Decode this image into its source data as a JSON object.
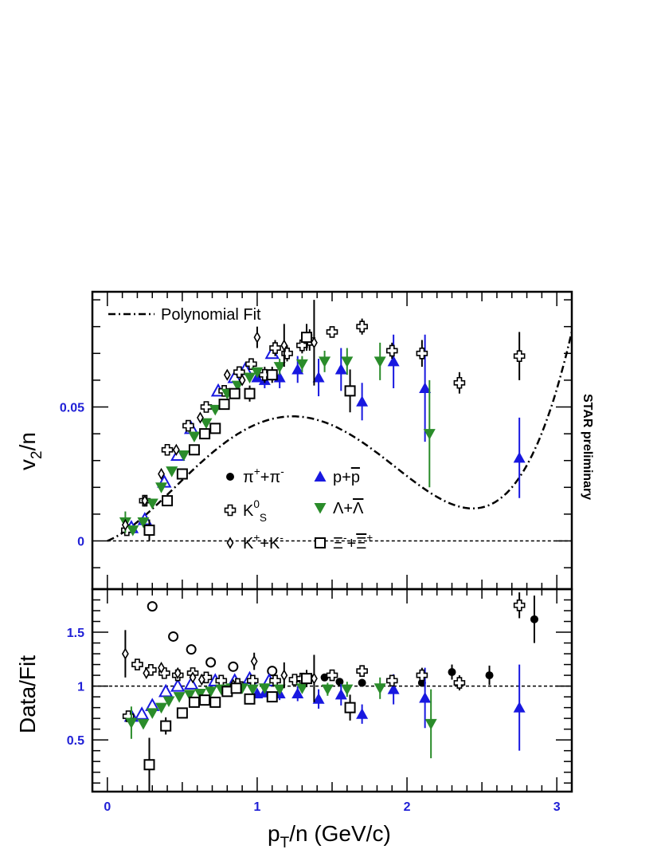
{
  "chart_data": [
    {
      "type": "scatter",
      "panel": "upper",
      "ylabel_main": "v",
      "ylabel_sub": "2",
      "ylabel_tail": "/n",
      "side_label": "STAR preliminary",
      "xlim": [
        -0.1,
        3.1
      ],
      "ylim": [
        -0.018,
        0.093
      ],
      "yticks": [
        {
          "v": 0,
          "label": "0"
        },
        {
          "v": 0.05,
          "label": "0.05"
        }
      ],
      "fit_label": "Polynomial Fit",
      "fit": {
        "a1": 0.0225,
        "a2": 0.078,
        "a3": -0.072,
        "a4": 0.0152
      },
      "series": [
        {
          "name": "pi",
          "legend": [
            "π",
            "+",
            "+π",
            "-"
          ],
          "marker": "circle-filled",
          "color": "#000000",
          "points": []
        },
        {
          "name": "p",
          "legend": [
            "p+",
            "p"
          ],
          "marker": "triangle-up-filled",
          "color": "#1818e0",
          "points": [
            [
              1.0,
              0.061,
              0.002
            ],
            [
              1.05,
              0.06,
              0.003
            ],
            [
              1.15,
              0.061,
              0.004
            ],
            [
              1.27,
              0.064,
              0.005
            ],
            [
              1.41,
              0.061,
              0.007
            ],
            [
              1.56,
              0.064,
              0.008
            ],
            [
              1.7,
              0.052,
              0.007
            ],
            [
              1.91,
              0.067,
              0.01
            ],
            [
              2.12,
              0.057,
              0.02
            ],
            [
              2.75,
              0.031,
              0.015
            ]
          ]
        },
        {
          "name": "p-open",
          "marker": "triangle-up-open",
          "color": "#1818e0",
          "points": [
            [
              0.16,
              0.005,
              0.001
            ],
            [
              0.25,
              0.008,
              0.001
            ],
            [
              0.38,
              0.022,
              0.001
            ],
            [
              0.47,
              0.032,
              0.001
            ],
            [
              0.56,
              0.042,
              0.001
            ],
            [
              0.74,
              0.056,
              0.001
            ],
            [
              0.85,
              0.061,
              0.002
            ],
            [
              0.92,
              0.064,
              0.002
            ],
            [
              1.1,
              0.07,
              0.002
            ]
          ]
        },
        {
          "name": "k0s",
          "legend": [
            "K",
            "0",
            "S"
          ],
          "marker": "cross-open",
          "color": "#000000",
          "points": [
            [
              0.13,
              0.004,
              0.002
            ],
            [
              0.25,
              0.015,
              0.001
            ],
            [
              0.4,
              0.034,
              0.001
            ],
            [
              0.54,
              0.043,
              0.001
            ],
            [
              0.66,
              0.05,
              0.001
            ],
            [
              0.78,
              0.056,
              0.001
            ],
            [
              0.88,
              0.063,
              0.002
            ],
            [
              0.96,
              0.066,
              0.002
            ],
            [
              1.05,
              0.062,
              0.003
            ],
            [
              1.12,
              0.072,
              0.003
            ],
            [
              1.2,
              0.07,
              0.003
            ],
            [
              1.3,
              0.073,
              0.003
            ],
            [
              1.35,
              0.075,
              0.004
            ],
            [
              1.5,
              0.078,
              0.002
            ],
            [
              1.7,
              0.08,
              0.003
            ],
            [
              1.9,
              0.071,
              0.003
            ],
            [
              2.1,
              0.07,
              0.005
            ],
            [
              2.35,
              0.059,
              0.004
            ],
            [
              2.75,
              0.069,
              0.009
            ]
          ]
        },
        {
          "name": "lambda",
          "legend": [
            "Λ+",
            "Λ"
          ],
          "marker": "triangle-down-filled",
          "color": "#2a8c2a",
          "points": [
            [
              0.12,
              0.007,
              0.004
            ],
            [
              0.17,
              0.004,
              0.002
            ],
            [
              0.24,
              0.007,
              0.002
            ],
            [
              0.3,
              0.014,
              0.001
            ],
            [
              0.36,
              0.02,
              0.001
            ],
            [
              0.43,
              0.026,
              0.001
            ],
            [
              0.51,
              0.032,
              0.001
            ],
            [
              0.58,
              0.039,
              0.001
            ],
            [
              0.66,
              0.044,
              0.001
            ],
            [
              0.72,
              0.049,
              0.001
            ],
            [
              0.8,
              0.055,
              0.001
            ],
            [
              0.87,
              0.058,
              0.002
            ],
            [
              0.95,
              0.061,
              0.002
            ],
            [
              1.0,
              0.063,
              0.002
            ],
            [
              1.15,
              0.065,
              0.003
            ],
            [
              1.3,
              0.066,
              0.003
            ],
            [
              1.45,
              0.067,
              0.004
            ],
            [
              1.6,
              0.067,
              0.005
            ],
            [
              1.82,
              0.067,
              0.007
            ],
            [
              2.15,
              0.04,
              0.02
            ]
          ]
        },
        {
          "name": "kpm",
          "legend": [
            "K",
            "+",
            "+K",
            "-"
          ],
          "marker": "diamond-open",
          "color": "#000000",
          "points": [
            [
              0.12,
              0.006,
              0.002
            ],
            [
              0.25,
              0.015,
              0.001
            ],
            [
              0.36,
              0.025,
              0.001
            ],
            [
              0.46,
              0.034,
              0.001
            ],
            [
              0.62,
              0.046,
              0.001
            ],
            [
              0.8,
              0.062,
              0.002
            ],
            [
              0.9,
              0.06,
              0.002
            ],
            [
              1.0,
              0.076,
              0.004
            ],
            [
              1.18,
              0.073,
              0.008
            ],
            [
              1.38,
              0.074,
              0.016
            ]
          ]
        },
        {
          "name": "xi",
          "legend": [
            "Ξ",
            "-",
            "+",
            "Ξ",
            "+"
          ],
          "marker": "square-open",
          "color": "#000000",
          "points": [
            [
              0.28,
              0.004,
              0.004
            ],
            [
              0.4,
              0.015,
              0.002
            ],
            [
              0.5,
              0.025,
              0.002
            ],
            [
              0.58,
              0.034,
              0.002
            ],
            [
              0.65,
              0.04,
              0.002
            ],
            [
              0.72,
              0.042,
              0.002
            ],
            [
              0.78,
              0.051,
              0.002
            ],
            [
              0.85,
              0.055,
              0.002
            ],
            [
              0.95,
              0.055,
              0.003
            ],
            [
              1.1,
              0.062,
              0.003
            ],
            [
              1.33,
              0.076,
              0.005
            ],
            [
              1.62,
              0.056,
              0.008
            ]
          ]
        }
      ]
    },
    {
      "type": "scatter",
      "panel": "lower",
      "ylabel": "Data/Fit",
      "xlabel_main": "p",
      "xlabel_sub": "T",
      "xlabel_tail": "/n (GeV/c)",
      "xlim": [
        -0.1,
        3.1
      ],
      "ylim": [
        0.02,
        1.9
      ],
      "reference_line": 1,
      "xticks": [
        {
          "v": 0,
          "label": "0"
        },
        {
          "v": 1,
          "label": "1"
        },
        {
          "v": 2,
          "label": "2"
        },
        {
          "v": 3,
          "label": "3"
        }
      ],
      "yticks": [
        {
          "v": 0.5,
          "label": "0.5"
        },
        {
          "v": 1,
          "label": "1"
        },
        {
          "v": 1.5,
          "label": "1.5"
        }
      ],
      "series": [
        {
          "name": "pi",
          "marker": "circle-filled",
          "color": "#000000",
          "points": [
            [
              1.35,
              1.08,
              0.04
            ],
            [
              1.45,
              1.08,
              0.03
            ],
            [
              1.55,
              1.04,
              0.03
            ],
            [
              1.7,
              1.03,
              0.03
            ],
            [
              2.1,
              1.03,
              0.04
            ],
            [
              2.3,
              1.13,
              0.07
            ],
            [
              2.55,
              1.1,
              0.09
            ],
            [
              2.85,
              1.62,
              0.22
            ]
          ]
        },
        {
          "name": "pi-open",
          "marker": "circle-open",
          "color": "#000000",
          "points": [
            [
              0.3,
              1.74,
              0.02
            ],
            [
              0.44,
              1.46,
              0.02
            ],
            [
              0.56,
              1.34,
              0.02
            ],
            [
              0.69,
              1.22,
              0.02
            ],
            [
              0.84,
              1.18,
              0.02
            ],
            [
              1.1,
              1.14,
              0.02
            ]
          ]
        },
        {
          "name": "p",
          "marker": "triangle-up-filled",
          "color": "#1818e0",
          "points": [
            [
              1.0,
              0.93,
              0.03
            ],
            [
              1.05,
              0.94,
              0.04
            ],
            [
              1.15,
              0.93,
              0.06
            ],
            [
              1.27,
              0.93,
              0.07
            ],
            [
              1.41,
              0.88,
              0.09
            ],
            [
              1.56,
              0.92,
              0.1
            ],
            [
              1.7,
              0.74,
              0.09
            ],
            [
              1.91,
              0.97,
              0.14
            ],
            [
              2.12,
              0.89,
              0.28
            ],
            [
              2.75,
              0.8,
              0.4
            ]
          ]
        },
        {
          "name": "p-open",
          "marker": "triangle-up-open",
          "color": "#1818e0",
          "points": [
            [
              0.16,
              0.72,
              0.03
            ],
            [
              0.23,
              0.74,
              0.03
            ],
            [
              0.3,
              0.82,
              0.02
            ],
            [
              0.39,
              0.95,
              0.02
            ],
            [
              0.47,
              1.0,
              0.02
            ],
            [
              0.56,
              1.02,
              0.02
            ],
            [
              0.72,
              1.05,
              0.02
            ],
            [
              0.85,
              1.05,
              0.02
            ],
            [
              0.95,
              1.07,
              0.02
            ],
            [
              1.08,
              1.05,
              0.03
            ]
          ]
        },
        {
          "name": "k0s",
          "marker": "cross-open",
          "color": "#000000",
          "points": [
            [
              0.14,
              0.72,
              0.05
            ],
            [
              0.2,
              1.2,
              0.04
            ],
            [
              0.29,
              1.15,
              0.03
            ],
            [
              0.38,
              1.12,
              0.03
            ],
            [
              0.47,
              1.1,
              0.03
            ],
            [
              0.57,
              1.12,
              0.02
            ],
            [
              0.66,
              1.08,
              0.02
            ],
            [
              0.76,
              1.05,
              0.02
            ],
            [
              0.87,
              1.02,
              0.02
            ],
            [
              0.97,
              1.05,
              0.03
            ],
            [
              1.12,
              1.05,
              0.03
            ],
            [
              1.25,
              1.06,
              0.04
            ],
            [
              1.3,
              1.07,
              0.04
            ],
            [
              1.5,
              1.1,
              0.04
            ],
            [
              1.7,
              1.14,
              0.04
            ],
            [
              1.9,
              1.05,
              0.05
            ],
            [
              2.1,
              1.1,
              0.07
            ],
            [
              2.35,
              1.03,
              0.07
            ],
            [
              2.75,
              1.75,
              0.12
            ]
          ]
        },
        {
          "name": "lambda",
          "marker": "triangle-down-filled",
          "color": "#2a8c2a",
          "points": [
            [
              0.16,
              0.66,
              0.15
            ],
            [
              0.24,
              0.65,
              0.05
            ],
            [
              0.3,
              0.75,
              0.03
            ],
            [
              0.36,
              0.8,
              0.03
            ],
            [
              0.41,
              0.86,
              0.02
            ],
            [
              0.48,
              0.9,
              0.02
            ],
            [
              0.55,
              0.92,
              0.02
            ],
            [
              0.62,
              0.93,
              0.02
            ],
            [
              0.69,
              0.95,
              0.02
            ],
            [
              0.76,
              0.97,
              0.02
            ],
            [
              0.83,
              0.98,
              0.02
            ],
            [
              0.9,
              0.98,
              0.02
            ],
            [
              0.97,
              0.97,
              0.03
            ],
            [
              1.05,
              0.98,
              0.03
            ],
            [
              1.15,
              0.97,
              0.04
            ],
            [
              1.3,
              0.98,
              0.05
            ],
            [
              1.47,
              0.97,
              0.06
            ],
            [
              1.6,
              0.97,
              0.07
            ],
            [
              1.82,
              0.98,
              0.1
            ],
            [
              2.16,
              0.65,
              0.32
            ]
          ]
        },
        {
          "name": "kpm",
          "marker": "diamond-open",
          "color": "#000000",
          "points": [
            [
              0.12,
              1.3,
              0.22
            ],
            [
              0.26,
              1.12,
              0.04
            ],
            [
              0.36,
              1.17,
              0.03
            ],
            [
              0.47,
              1.12,
              0.03
            ],
            [
              0.57,
              1.08,
              0.03
            ],
            [
              0.63,
              1.06,
              0.02
            ],
            [
              0.84,
              1.01,
              0.03
            ],
            [
              0.98,
              1.23,
              0.08
            ],
            [
              1.18,
              1.1,
              0.12
            ],
            [
              1.38,
              1.07,
              0.22
            ]
          ]
        },
        {
          "name": "xi",
          "marker": "square-open",
          "color": "#000000",
          "points": [
            [
              0.28,
              0.27,
              0.25
            ],
            [
              0.39,
              0.63,
              0.08
            ],
            [
              0.5,
              0.75,
              0.05
            ],
            [
              0.58,
              0.85,
              0.05
            ],
            [
              0.65,
              0.87,
              0.04
            ],
            [
              0.72,
              0.85,
              0.04
            ],
            [
              0.8,
              0.95,
              0.04
            ],
            [
              0.86,
              0.98,
              0.04
            ],
            [
              0.95,
              0.88,
              0.04
            ],
            [
              1.1,
              0.9,
              0.05
            ],
            [
              1.33,
              1.07,
              0.08
            ],
            [
              1.62,
              0.8,
              0.12
            ]
          ]
        }
      ]
    }
  ]
}
